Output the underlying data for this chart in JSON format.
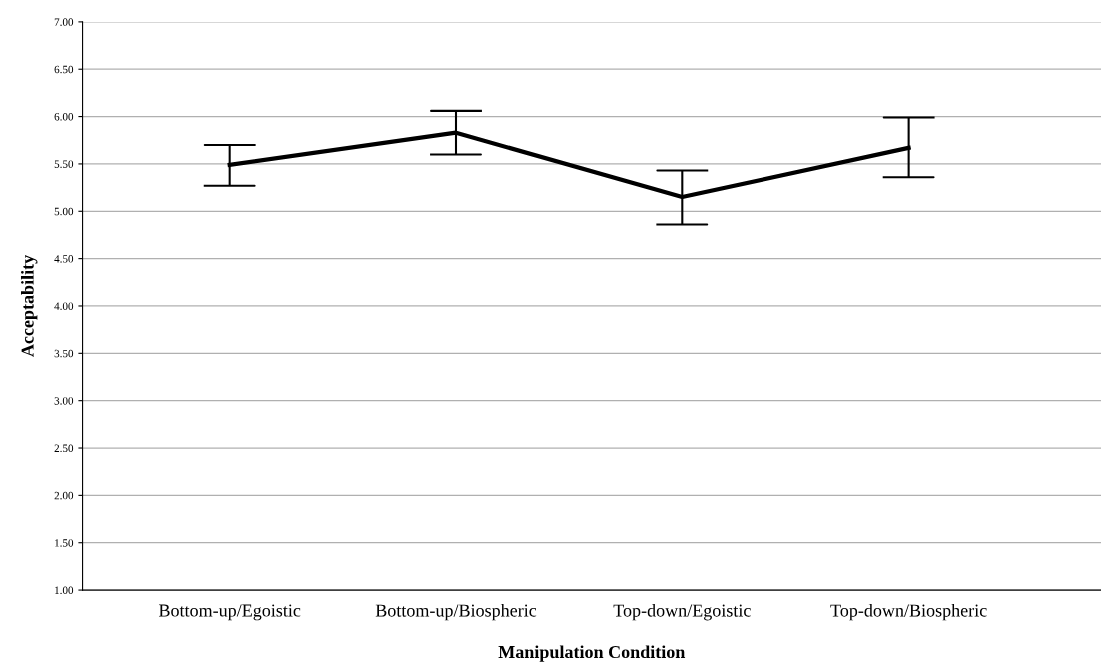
{
  "chart_data": {
    "type": "line",
    "xlabel": "Manipulation Condition",
    "ylabel": "Acceptability",
    "categories": [
      "Bottom-up/Egoistic",
      "Bottom-up/Biospheric",
      "Top-down/Egoistic",
      "Top-down/Biospheric"
    ],
    "series": [
      {
        "color": "#000000",
        "values": [
          5.49,
          5.83,
          5.15,
          5.67
        ],
        "errors": [
          [
            5.27,
            5.7
          ],
          [
            5.6,
            6.06
          ],
          [
            4.86,
            5.43
          ],
          [
            5.36,
            5.99
          ]
        ]
      }
    ],
    "marker": "none",
    "line_style": "solid",
    "ylim": [
      1,
      7
    ],
    "yticks": [
      {
        "value": 1,
        "label": "1.00"
      },
      {
        "value": 1.5,
        "label": "1.50"
      },
      {
        "value": 2,
        "label": "2.00"
      },
      {
        "value": 2.5,
        "label": "2.50"
      },
      {
        "value": 3,
        "label": "3.00"
      },
      {
        "value": 3.5,
        "label": "3.50"
      },
      {
        "value": 4,
        "label": "4.00"
      },
      {
        "value": 4.5,
        "label": "4.50"
      },
      {
        "value": 5,
        "label": "5.00"
      },
      {
        "value": 5.5,
        "label": "5.50"
      },
      {
        "value": 6,
        "label": "6.00"
      },
      {
        "value": 6.5,
        "label": "6.50"
      },
      {
        "value": 7,
        "label": "7.00"
      }
    ],
    "grid": "y"
  }
}
